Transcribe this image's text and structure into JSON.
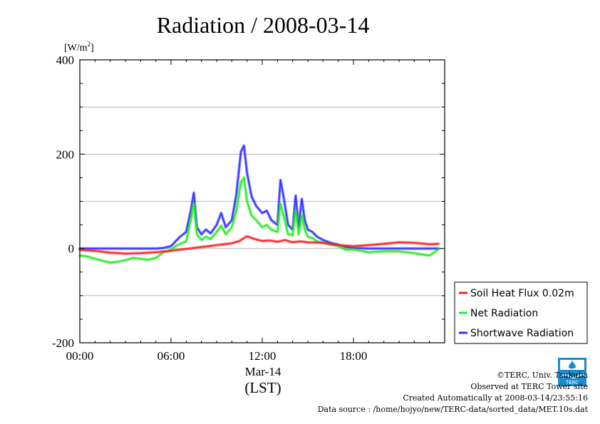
{
  "chart_data": {
    "type": "line",
    "title": "Radiation / 2008-03-14",
    "ylabel": "[W/m²]",
    "ylabel_base": "[W/m",
    "ylabel_sup": "2",
    "ylabel_end": "]",
    "xlabel_date": "Mar-14",
    "xlabel_unit": "(LST)",
    "xlim": [
      0,
      24
    ],
    "ylim": [
      -200,
      400
    ],
    "yticks": [
      -200,
      0,
      200,
      400
    ],
    "xticks": [
      {
        "value": 0,
        "label": "00:00"
      },
      {
        "value": 6,
        "label": "06:00"
      },
      {
        "value": 12,
        "label": "12:00"
      },
      {
        "value": 18,
        "label": "18:00"
      }
    ],
    "grid": true,
    "legend_position": "right-bottom",
    "series": [
      {
        "name": "Soil Heat Flux 0.02m",
        "color": "#ff2020",
        "x": [
          0,
          1,
          2,
          3,
          4,
          5,
          6,
          7,
          8,
          9,
          10,
          10.5,
          11,
          11.5,
          12,
          12.5,
          13,
          13.5,
          14,
          14.5,
          15,
          16,
          17,
          18,
          19,
          20,
          21,
          22,
          23,
          23.6
        ],
        "y": [
          -3,
          -5,
          -9,
          -11,
          -10,
          -8,
          -5,
          -1,
          3,
          7,
          11,
          16,
          26,
          20,
          16,
          17,
          14,
          18,
          13,
          15,
          13,
          12,
          7,
          5,
          7,
          10,
          13,
          12,
          9,
          10
        ]
      },
      {
        "name": "Net Radiation",
        "color": "#22ee22",
        "x": [
          0,
          0.5,
          1,
          1.5,
          2,
          2.5,
          3,
          3.5,
          4,
          4.5,
          5,
          5.5,
          6,
          6.3,
          6.6,
          7,
          7.3,
          7.5,
          7.7,
          8,
          8.3,
          8.6,
          9,
          9.3,
          9.6,
          10,
          10.3,
          10.6,
          10.8,
          11,
          11.3,
          11.6,
          12,
          12.3,
          12.6,
          13,
          13.2,
          13.4,
          13.7,
          14,
          14.2,
          14.4,
          14.6,
          14.8,
          15,
          15.3,
          15.6,
          16,
          16.5,
          17,
          17.5,
          18,
          19,
          20,
          21,
          22,
          23,
          23.6
        ],
        "y": [
          -15,
          -17,
          -22,
          -26,
          -30,
          -28,
          -25,
          -20,
          -22,
          -24,
          -20,
          -8,
          -3,
          5,
          10,
          15,
          60,
          95,
          30,
          18,
          25,
          20,
          35,
          48,
          30,
          45,
          80,
          140,
          150,
          100,
          70,
          60,
          45,
          50,
          40,
          35,
          95,
          70,
          30,
          28,
          80,
          30,
          70,
          40,
          25,
          22,
          15,
          12,
          8,
          5,
          -3,
          -2,
          -8,
          -6,
          -6,
          -10,
          -15,
          -2
        ]
      },
      {
        "name": "Shortwave Radiation",
        "color": "#3030ff",
        "x": [
          0,
          1,
          2,
          3,
          4,
          5,
          5.5,
          6,
          6.3,
          6.6,
          7,
          7.3,
          7.5,
          7.7,
          8,
          8.3,
          8.6,
          9,
          9.3,
          9.6,
          10,
          10.3,
          10.6,
          10.8,
          11,
          11.3,
          11.6,
          12,
          12.3,
          12.6,
          13,
          13.2,
          13.4,
          13.7,
          14,
          14.2,
          14.4,
          14.6,
          14.8,
          15,
          15.3,
          15.6,
          16,
          16.5,
          17,
          17.5,
          18,
          19,
          20,
          21,
          22,
          23,
          23.6
        ],
        "y": [
          0,
          0,
          0,
          0,
          0,
          0,
          1,
          5,
          15,
          25,
          35,
          80,
          118,
          45,
          30,
          40,
          32,
          50,
          75,
          45,
          60,
          115,
          205,
          218,
          160,
          110,
          90,
          75,
          80,
          60,
          50,
          145,
          110,
          50,
          40,
          112,
          45,
          105,
          60,
          40,
          35,
          25,
          18,
          12,
          8,
          3,
          1,
          0,
          0,
          0,
          0,
          0,
          0
        ]
      }
    ]
  },
  "credits": {
    "copyright": "©TERC, Univ. Tsukuba",
    "observed": "Observed at TERC Tower site",
    "created": "Created Automatically at 2008-03-14/23:55:16",
    "source": "Data source : /home/hojyo/new/TERC-data/sorted_data/MET.10s.dat"
  },
  "logo": {
    "text": "TERC",
    "color": "#1a8ccf"
  }
}
